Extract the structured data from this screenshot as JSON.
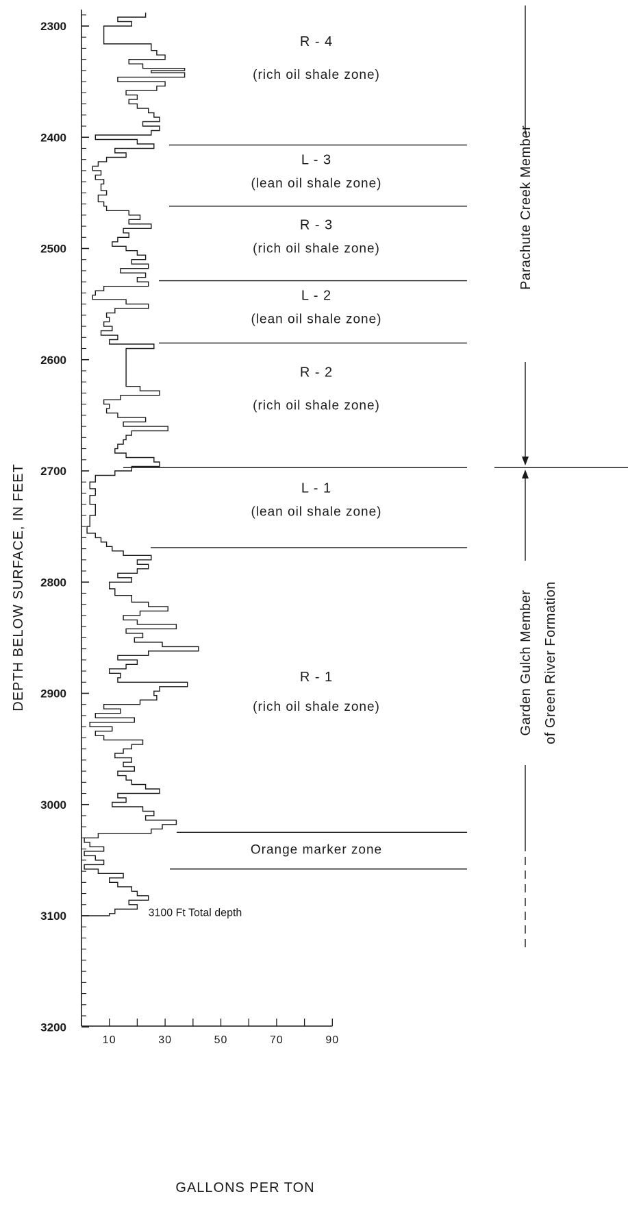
{
  "chart_data": {
    "type": "line",
    "xlabel": "GALLONS PER TON",
    "ylabel": "DEPTH BELOW SURFACE, IN FEET",
    "xlim": [
      0,
      90
    ],
    "ylim": [
      3200,
      2285
    ],
    "x_ticks": [
      "10",
      "30",
      "50",
      "70",
      "90"
    ],
    "y_ticks": [
      "2300",
      "2400",
      "2500",
      "2600",
      "2700",
      "2800",
      "2900",
      "3000",
      "3100",
      "3200"
    ],
    "series": [
      {
        "points": [
          [
            2288,
            23
          ],
          [
            2292,
            13
          ],
          [
            2296,
            18
          ],
          [
            2300,
            8
          ],
          [
            2316,
            25
          ],
          [
            2322,
            27
          ],
          [
            2326,
            30
          ],
          [
            2330,
            17
          ],
          [
            2334,
            22
          ],
          [
            2338,
            37
          ],
          [
            2340,
            25
          ],
          [
            2342,
            37
          ],
          [
            2346,
            13
          ],
          [
            2350,
            30
          ],
          [
            2354,
            27
          ],
          [
            2358,
            16
          ],
          [
            2362,
            20
          ],
          [
            2366,
            17
          ],
          [
            2370,
            20
          ],
          [
            2374,
            24
          ],
          [
            2378,
            26
          ],
          [
            2382,
            28
          ],
          [
            2386,
            22
          ],
          [
            2390,
            28
          ],
          [
            2394,
            25
          ],
          [
            2398,
            5
          ],
          [
            2402,
            20
          ],
          [
            2406,
            26
          ],
          [
            2410,
            12
          ],
          [
            2414,
            16
          ],
          [
            2418,
            9
          ],
          [
            2422,
            6
          ],
          [
            2426,
            4
          ],
          [
            2430,
            7
          ],
          [
            2434,
            5
          ],
          [
            2438,
            8
          ],
          [
            2442,
            7
          ],
          [
            2448,
            9
          ],
          [
            2452,
            6
          ],
          [
            2458,
            8
          ],
          [
            2462,
            9
          ],
          [
            2466,
            17
          ],
          [
            2470,
            21
          ],
          [
            2474,
            17
          ],
          [
            2478,
            25
          ],
          [
            2482,
            15
          ],
          [
            2486,
            17
          ],
          [
            2490,
            13
          ],
          [
            2494,
            11
          ],
          [
            2498,
            16
          ],
          [
            2502,
            20
          ],
          [
            2506,
            23
          ],
          [
            2510,
            18
          ],
          [
            2514,
            24
          ],
          [
            2518,
            14
          ],
          [
            2522,
            23
          ],
          [
            2526,
            20
          ],
          [
            2530,
            24
          ],
          [
            2534,
            8
          ],
          [
            2538,
            5
          ],
          [
            2542,
            4
          ],
          [
            2546,
            16
          ],
          [
            2550,
            24
          ],
          [
            2554,
            12
          ],
          [
            2558,
            9
          ],
          [
            2562,
            10
          ],
          [
            2566,
            8
          ],
          [
            2570,
            11
          ],
          [
            2574,
            7
          ],
          [
            2578,
            13
          ],
          [
            2582,
            10
          ],
          [
            2586,
            26
          ],
          [
            2590,
            16
          ],
          [
            2624,
            21
          ],
          [
            2628,
            28
          ],
          [
            2632,
            14
          ],
          [
            2636,
            8
          ],
          [
            2640,
            10
          ],
          [
            2644,
            9
          ],
          [
            2648,
            13
          ],
          [
            2652,
            23
          ],
          [
            2656,
            15
          ],
          [
            2660,
            31
          ],
          [
            2664,
            18
          ],
          [
            2668,
            16
          ],
          [
            2672,
            15
          ],
          [
            2676,
            13
          ],
          [
            2680,
            12
          ],
          [
            2684,
            16
          ],
          [
            2688,
            26
          ],
          [
            2692,
            28
          ],
          [
            2696,
            18
          ],
          [
            2700,
            12
          ],
          [
            2704,
            5
          ],
          [
            2710,
            3
          ],
          [
            2716,
            5
          ],
          [
            2722,
            3
          ],
          [
            2730,
            5
          ],
          [
            2740,
            3
          ],
          [
            2750,
            2
          ],
          [
            2756,
            5
          ],
          [
            2760,
            7
          ],
          [
            2764,
            9
          ],
          [
            2768,
            11
          ],
          [
            2772,
            15
          ],
          [
            2776,
            25
          ],
          [
            2780,
            20
          ],
          [
            2784,
            24
          ],
          [
            2788,
            20
          ],
          [
            2792,
            13
          ],
          [
            2796,
            18
          ],
          [
            2800,
            10
          ],
          [
            2806,
            12
          ],
          [
            2812,
            18
          ],
          [
            2818,
            24
          ],
          [
            2822,
            31
          ],
          [
            2826,
            21
          ],
          [
            2830,
            15
          ],
          [
            2834,
            20
          ],
          [
            2838,
            34
          ],
          [
            2842,
            16
          ],
          [
            2846,
            22
          ],
          [
            2850,
            19
          ],
          [
            2854,
            29
          ],
          [
            2858,
            42
          ],
          [
            2862,
            24
          ],
          [
            2866,
            13
          ],
          [
            2870,
            20
          ],
          [
            2874,
            16
          ],
          [
            2878,
            10
          ],
          [
            2882,
            14
          ],
          [
            2886,
            13
          ],
          [
            2890,
            38
          ],
          [
            2894,
            28
          ],
          [
            2898,
            26
          ],
          [
            2902,
            27
          ],
          [
            2906,
            21
          ],
          [
            2910,
            8
          ],
          [
            2914,
            14
          ],
          [
            2918,
            5
          ],
          [
            2922,
            19
          ],
          [
            2926,
            3
          ],
          [
            2930,
            11
          ],
          [
            2934,
            5
          ],
          [
            2938,
            8
          ],
          [
            2942,
            22
          ],
          [
            2946,
            18
          ],
          [
            2950,
            15
          ],
          [
            2954,
            12
          ],
          [
            2958,
            18
          ],
          [
            2962,
            15
          ],
          [
            2966,
            19
          ],
          [
            2970,
            13
          ],
          [
            2974,
            16
          ],
          [
            2978,
            18
          ],
          [
            2982,
            23
          ],
          [
            2986,
            28
          ],
          [
            2990,
            13
          ],
          [
            2994,
            16
          ],
          [
            2998,
            11
          ],
          [
            3002,
            22
          ],
          [
            3006,
            26
          ],
          [
            3010,
            23
          ],
          [
            3014,
            34
          ],
          [
            3018,
            29
          ],
          [
            3022,
            25
          ],
          [
            3026,
            6
          ],
          [
            3030,
            1
          ],
          [
            3034,
            3
          ],
          [
            3038,
            8
          ],
          [
            3042,
            1
          ],
          [
            3046,
            5
          ],
          [
            3050,
            8
          ],
          [
            3054,
            1
          ],
          [
            3058,
            6
          ],
          [
            3062,
            15
          ],
          [
            3066,
            10
          ],
          [
            3070,
            13
          ],
          [
            3074,
            18
          ],
          [
            3078,
            20
          ],
          [
            3082,
            24
          ],
          [
            3086,
            17
          ],
          [
            3090,
            20
          ],
          [
            3094,
            12
          ],
          [
            3098,
            10
          ],
          [
            3100,
            10
          ]
        ]
      }
    ],
    "zones": [
      {
        "name": "R - 4",
        "description": "(rich oil shale zone)",
        "top": 2285,
        "bottom": 2407
      },
      {
        "name": "L - 3",
        "description": "(lean oil shale zone)",
        "top": 2407,
        "bottom": 2462
      },
      {
        "name": "R - 3",
        "description": "(rich oil shale zone)",
        "top": 2462,
        "bottom": 2529
      },
      {
        "name": "L - 2",
        "description": "(lean oil shale zone)",
        "top": 2529,
        "bottom": 2585
      },
      {
        "name": "R - 2",
        "description": "(rich oil shale zone)",
        "top": 2585,
        "bottom": 2697
      },
      {
        "name": "L - 1",
        "description": "(lean oil shale zone)",
        "top": 2697,
        "bottom": 2769
      },
      {
        "name": "R - 1",
        "description": "(rich oil shale zone)",
        "top": 2769,
        "bottom": 3025
      },
      {
        "name": "Orange marker zone",
        "description": "",
        "top": 3025,
        "bottom": 3058
      }
    ],
    "annotations": [
      {
        "text": "3100 Ft Total depth",
        "depth": 3096,
        "gpt": 23
      }
    ],
    "members": [
      {
        "name": "Parachute Creek Member",
        "lines": [
          "Parachute Creek Member"
        ],
        "top": 2285,
        "bottom": 2697
      },
      {
        "name": "Garden Gulch Member of Green River Formation",
        "lines": [
          "Garden Gulch Member",
          "of Green River Formation"
        ],
        "top": 2697,
        "bottom": 3100
      }
    ],
    "grid": false
  }
}
